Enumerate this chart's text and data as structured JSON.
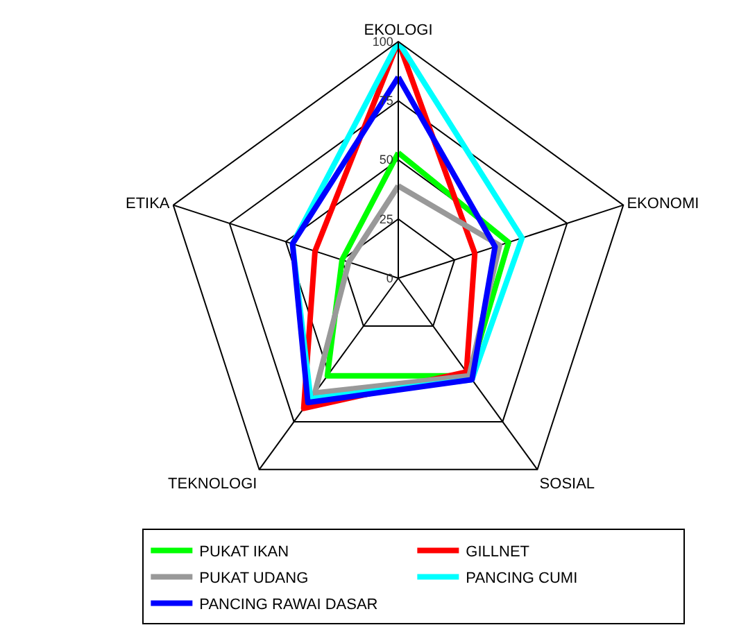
{
  "chart_data": {
    "type": "radar",
    "categories": [
      "EKOLOGI",
      "EKONOMI",
      "SOSIAL",
      "TEKNOLOGI",
      "ETIKA"
    ],
    "ylim": [
      0,
      100
    ],
    "yticks": [
      0,
      25,
      50,
      75,
      100
    ],
    "grid": true,
    "legend": "bottom",
    "marker": "none",
    "line_style": "solid",
    "series": [
      {
        "name": "PUKAT IKAN",
        "color": "#00ff00",
        "values": [
          53,
          49,
          51,
          51,
          25
        ]
      },
      {
        "name": "GILLNET",
        "color": "#ff0000",
        "values": [
          100,
          34,
          49,
          68,
          37
        ]
      },
      {
        "name": "PUKAT UDANG",
        "color": "#999999",
        "values": [
          39,
          45,
          51,
          60,
          22
        ]
      },
      {
        "name": "PANCING CUMI",
        "color": "#00ffff",
        "values": [
          100,
          55,
          53,
          63,
          47
        ]
      },
      {
        "name": "PANCING RAWAI DASAR",
        "color": "#0000ff",
        "values": [
          85,
          43,
          53,
          65,
          47
        ]
      }
    ]
  }
}
